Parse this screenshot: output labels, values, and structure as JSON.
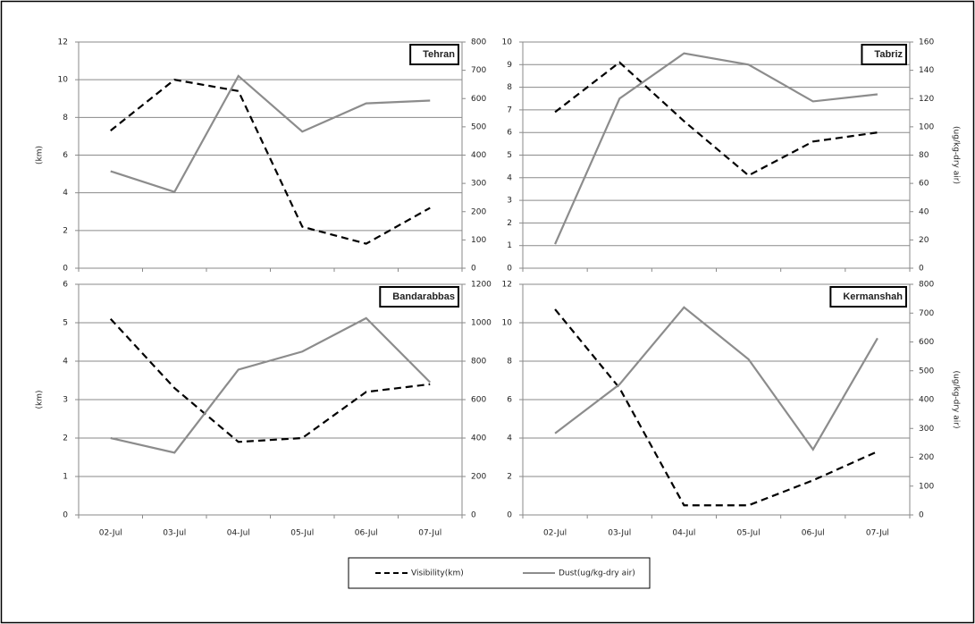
{
  "chart_data": [
    {
      "type": "line",
      "title": "Tehran",
      "ylabel": "(km)",
      "series": [
        {
          "name": "Visibility(km)",
          "color": "#000000",
          "style": "dashed",
          "values": [
            7.3,
            10,
            9.4,
            2.2,
            1.3,
            3.2
          ]
        },
        {
          "name": "Dust(ug/kg-dry air)",
          "color": "#8c8c8c",
          "style": "solid",
          "axis": "y2",
          "values": [
            343,
            270,
            680,
            483,
            583,
            593
          ]
        }
      ],
      "ylim": [
        0,
        12
      ],
      "yticks": [
        0,
        2,
        4,
        6,
        8,
        10,
        12
      ],
      "y2lim": [
        0,
        800
      ],
      "y2ticks": [
        0,
        100,
        200,
        300,
        400,
        500,
        600,
        700,
        800
      ],
      "grid": true
    },
    {
      "type": "line",
      "title": "Tabriz",
      "y2label": "(ug/kg-dry air)",
      "series": [
        {
          "name": "Visibility(km)",
          "color": "#000000",
          "style": "dashed",
          "values": [
            6.9,
            9.1,
            6.5,
            4.1,
            5.6,
            6.0
          ]
        },
        {
          "name": "Dust(ug/kg-dry air)",
          "color": "#8c8c8c",
          "style": "solid",
          "axis": "y2",
          "values": [
            17,
            120,
            152,
            144,
            118,
            123
          ]
        }
      ],
      "ylim": [
        0,
        10
      ],
      "yticks": [
        0,
        1,
        2,
        3,
        4,
        5,
        6,
        7,
        8,
        9,
        10
      ],
      "y2lim": [
        0,
        160
      ],
      "y2ticks": [
        0,
        20,
        40,
        60,
        80,
        100,
        120,
        140,
        160
      ],
      "grid": true
    },
    {
      "type": "line",
      "title": "Bandarabbas",
      "ylabel": "(km)",
      "categories": [
        "02-Jul",
        "03-Jul",
        "04-Jul",
        "05-Jul",
        "06-Jul",
        "07-Jul"
      ],
      "series": [
        {
          "name": "Visibility(km)",
          "color": "#000000",
          "style": "dashed",
          "values": [
            5.1,
            3.3,
            1.9,
            2.0,
            3.2,
            3.4
          ]
        },
        {
          "name": "Dust(ug/kg-dry air)",
          "color": "#8c8c8c",
          "style": "solid",
          "axis": "y2",
          "values": [
            400,
            324,
            756,
            850,
            1024,
            690
          ]
        }
      ],
      "ylim": [
        0,
        6
      ],
      "yticks": [
        0,
        1,
        2,
        3,
        4,
        5,
        6
      ],
      "y2lim": [
        0,
        1200
      ],
      "y2ticks": [
        0,
        200,
        400,
        600,
        800,
        1000,
        1200
      ],
      "grid": true
    },
    {
      "type": "line",
      "title": "Kermanshah",
      "y2label": "(ug/kg-dry air)",
      "categories": [
        "02-Jul",
        "03-Jul",
        "04-Jul",
        "05-Jul",
        "06-Jul",
        "07-Jul"
      ],
      "series": [
        {
          "name": "Visibility(km)",
          "color": "#000000",
          "style": "dashed",
          "values": [
            10.7,
            6.6,
            0.5,
            0.5,
            1.8,
            3.3
          ]
        },
        {
          "name": "Dust(ug/kg-dry air)",
          "color": "#8c8c8c",
          "style": "solid",
          "axis": "y2",
          "values": [
            283,
            453,
            720,
            540,
            227,
            613
          ]
        }
      ],
      "ylim": [
        0,
        12
      ],
      "yticks": [
        0,
        2,
        4,
        6,
        8,
        10,
        12
      ],
      "y2lim": [
        0,
        800
      ],
      "y2ticks": [
        0,
        100,
        200,
        300,
        400,
        500,
        600,
        700,
        800
      ],
      "grid": true
    }
  ]
}
